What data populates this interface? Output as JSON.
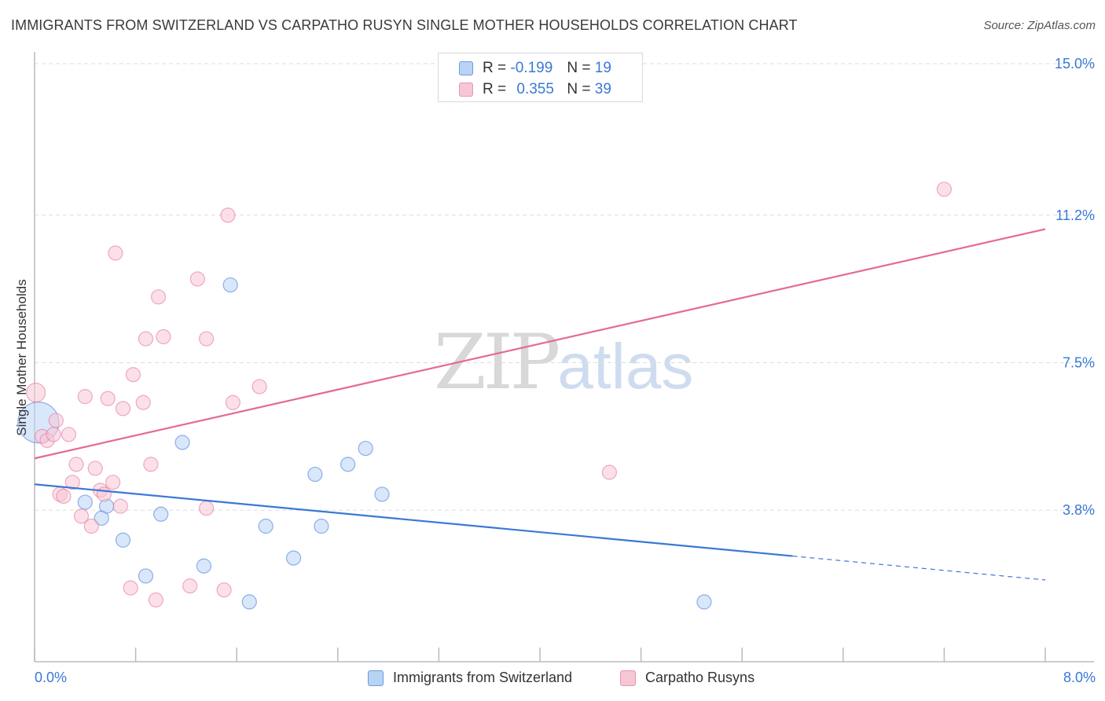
{
  "header": {
    "title": "IMMIGRANTS FROM SWITZERLAND VS CARPATHO RUSYN SINGLE MOTHER HOUSEHOLDS CORRELATION CHART",
    "source": "Source: ZipAtlas.com"
  },
  "watermark": {
    "zip": "ZIP",
    "atlas": "atlas"
  },
  "legend_top": {
    "rows": [
      {
        "r_label": "R =",
        "r_value": "-0.199",
        "n_label": "N =",
        "n_value": "19"
      },
      {
        "r_label": "R =",
        "r_value": "0.355",
        "n_label": "N =",
        "n_value": "39"
      }
    ]
  },
  "colors": {
    "blue": "#3a78d6",
    "blue_fill": "#b9d3f5",
    "pink": "#e36b93",
    "pink_fill": "#f7c6d5",
    "grid": "#dddddd",
    "axis": "#bbbbbb",
    "tick_label": "#3a78d6"
  },
  "chart_data": {
    "type": "scatter",
    "title": "IMMIGRANTS FROM SWITZERLAND VS CARPATHO RUSYN SINGLE MOTHER HOUSEHOLDS CORRELATION CHART",
    "xlabel": "",
    "ylabel": "Single Mother Households",
    "xlim": [
      0,
      8
    ],
    "ylim": [
      0,
      15
    ],
    "x_tick_labels": [
      "0.0%",
      "8.0%"
    ],
    "y_ticks": [
      3.8,
      7.5,
      11.2,
      15.0
    ],
    "y_tick_labels": [
      "3.8%",
      "7.5%",
      "11.2%",
      "15.0%"
    ],
    "grid": true,
    "legend_position": "bottom",
    "series": [
      {
        "name": "Immigrants from Switzerland",
        "color": "#3a78d6",
        "fill": "#b9d3f5",
        "points": [
          [
            0.03,
            6.0,
            26
          ],
          [
            0.4,
            4.0,
            9
          ],
          [
            0.57,
            3.9,
            9
          ],
          [
            0.53,
            3.6,
            9
          ],
          [
            0.7,
            3.05,
            9
          ],
          [
            0.88,
            2.15,
            9
          ],
          [
            1.0,
            3.7,
            9
          ],
          [
            1.17,
            5.5,
            9
          ],
          [
            1.34,
            2.4,
            9
          ],
          [
            1.55,
            9.45,
            9
          ],
          [
            1.7,
            1.5,
            9
          ],
          [
            1.83,
            3.4,
            9
          ],
          [
            2.05,
            2.6,
            9
          ],
          [
            2.22,
            4.7,
            9
          ],
          [
            2.27,
            3.4,
            9
          ],
          [
            2.48,
            4.95,
            9
          ],
          [
            2.62,
            5.35,
            9
          ],
          [
            2.75,
            4.2,
            9
          ],
          [
            5.3,
            1.5,
            9
          ]
        ],
        "trend": {
          "x0": 0,
          "y0": 4.45,
          "x1": 6.0,
          "y1": 2.65,
          "dash_to_x": 8.0,
          "dash_to_y": 2.05
        }
      },
      {
        "name": "Carpatho Rusyns",
        "color": "#e36b93",
        "fill": "#f7c6d5",
        "points": [
          [
            0.01,
            6.75,
            12
          ],
          [
            0.06,
            5.65,
            9
          ],
          [
            0.1,
            5.55,
            9
          ],
          [
            0.15,
            5.7,
            9
          ],
          [
            0.17,
            6.05,
            9
          ],
          [
            0.2,
            4.2,
            9
          ],
          [
            0.23,
            4.15,
            9
          ],
          [
            0.27,
            5.7,
            9
          ],
          [
            0.3,
            4.5,
            9
          ],
          [
            0.33,
            4.95,
            9
          ],
          [
            0.37,
            3.65,
            9
          ],
          [
            0.4,
            6.65,
            9
          ],
          [
            0.45,
            3.4,
            9
          ],
          [
            0.48,
            4.85,
            9
          ],
          [
            0.52,
            4.3,
            9
          ],
          [
            0.55,
            4.2,
            9
          ],
          [
            0.58,
            6.6,
            9
          ],
          [
            0.62,
            4.5,
            9
          ],
          [
            0.64,
            10.25,
            9
          ],
          [
            0.68,
            3.9,
            9
          ],
          [
            0.7,
            6.35,
            9
          ],
          [
            0.76,
            1.85,
            9
          ],
          [
            0.78,
            7.2,
            9
          ],
          [
            0.86,
            6.5,
            9
          ],
          [
            0.88,
            8.1,
            9
          ],
          [
            0.92,
            4.95,
            9
          ],
          [
            0.96,
            1.55,
            9
          ],
          [
            0.98,
            9.15,
            9
          ],
          [
            1.02,
            8.15,
            9
          ],
          [
            1.23,
            1.9,
            9
          ],
          [
            1.29,
            9.6,
            9
          ],
          [
            1.36,
            3.85,
            9
          ],
          [
            1.36,
            8.1,
            9
          ],
          [
            1.5,
            1.8,
            9
          ],
          [
            1.53,
            11.2,
            9
          ],
          [
            1.57,
            6.5,
            9
          ],
          [
            1.78,
            6.9,
            9
          ],
          [
            4.55,
            4.75,
            9
          ],
          [
            7.2,
            11.85,
            9
          ]
        ],
        "trend": {
          "x0": 0,
          "y0": 5.1,
          "x1": 8.0,
          "y1": 10.85
        }
      }
    ]
  },
  "bottom_legend": {
    "items": [
      {
        "label": "Immigrants from Switzerland"
      },
      {
        "label": "Carpatho Rusyns"
      }
    ]
  }
}
